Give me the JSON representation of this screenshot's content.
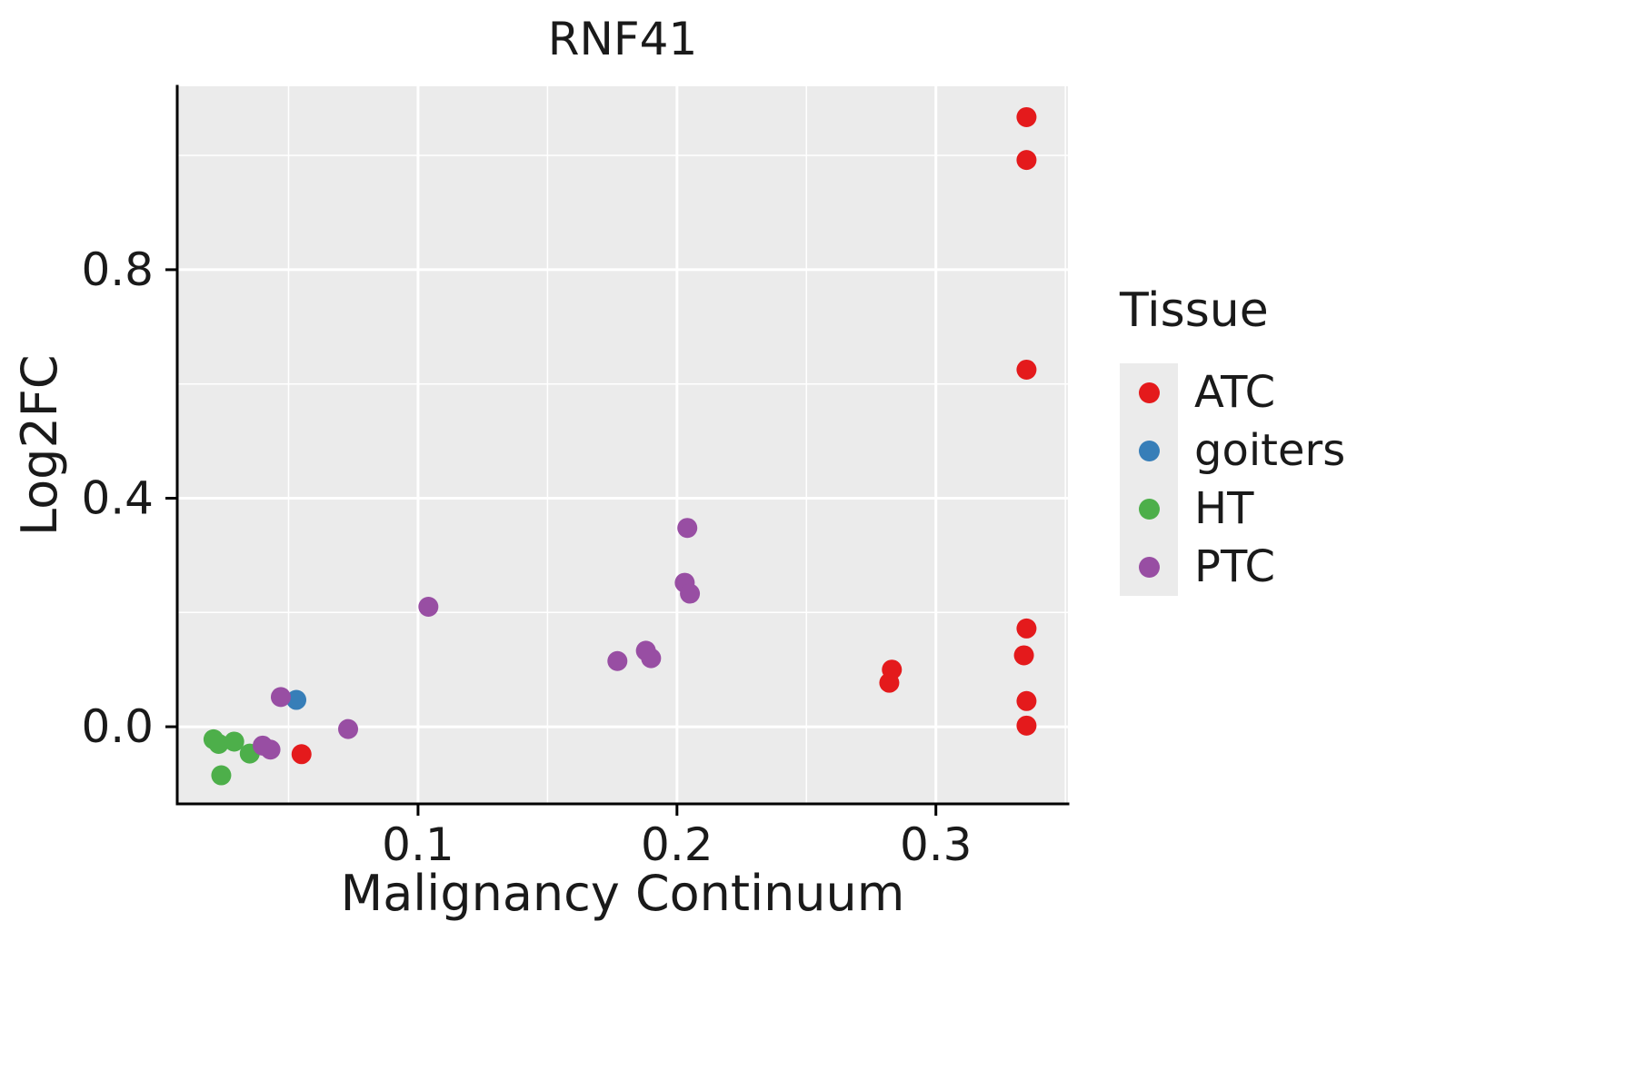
{
  "chart_data": {
    "type": "scatter",
    "title": "RNF41",
    "xlabel": "Malignancy Continuum",
    "ylabel": "Log2FC",
    "xlim": [
      0.007,
      0.351
    ],
    "ylim": [
      -0.135,
      1.121
    ],
    "xticks": [
      0.1,
      0.2,
      0.3
    ],
    "xtick_labels": [
      "0.1",
      "0.2",
      "0.3"
    ],
    "yticks": [
      0.0,
      0.4,
      0.8
    ],
    "ytick_labels": [
      "0.0",
      "0.4",
      "0.8"
    ],
    "xticks_minor": [
      0.05,
      0.15,
      0.25,
      0.35
    ],
    "yticks_minor": [
      0.2,
      0.6,
      1.0
    ],
    "panel_color": "#EBEBEB",
    "grid_color": "#FFFFFF",
    "axis_color": "#000000",
    "point_radius": 11,
    "legend": {
      "title": "Tissue",
      "position": "right",
      "entries": [
        {
          "label": "ATC",
          "color": "#E41A1C"
        },
        {
          "label": "goiters",
          "color": "#377EB8"
        },
        {
          "label": "HT",
          "color": "#4DAF4A"
        },
        {
          "label": "PTC",
          "color": "#984EA3"
        }
      ]
    },
    "series": [
      {
        "name": "ATC",
        "color": "#E41A1C",
        "points": [
          [
            0.335,
            1.067
          ],
          [
            0.335,
            0.992
          ],
          [
            0.335,
            0.625
          ],
          [
            0.335,
            0.172
          ],
          [
            0.334,
            0.125
          ],
          [
            0.335,
            0.045
          ],
          [
            0.335,
            0.002
          ],
          [
            0.283,
            0.1
          ],
          [
            0.282,
            0.077
          ],
          [
            0.055,
            -0.048
          ]
        ]
      },
      {
        "name": "goiters",
        "color": "#377EB8",
        "points": [
          [
            0.053,
            0.047
          ]
        ]
      },
      {
        "name": "HT",
        "color": "#4DAF4A",
        "points": [
          [
            0.021,
            -0.022
          ],
          [
            0.023,
            -0.03
          ],
          [
            0.029,
            -0.026
          ],
          [
            0.035,
            -0.047
          ],
          [
            0.024,
            -0.085
          ]
        ]
      },
      {
        "name": "PTC",
        "color": "#984EA3",
        "points": [
          [
            0.047,
            0.052
          ],
          [
            0.04,
            -0.033
          ],
          [
            0.043,
            -0.04
          ],
          [
            0.073,
            -0.004
          ],
          [
            0.104,
            0.21
          ],
          [
            0.177,
            0.115
          ],
          [
            0.188,
            0.133
          ],
          [
            0.19,
            0.12
          ],
          [
            0.204,
            0.348
          ],
          [
            0.203,
            0.252
          ],
          [
            0.205,
            0.233
          ]
        ]
      }
    ]
  }
}
